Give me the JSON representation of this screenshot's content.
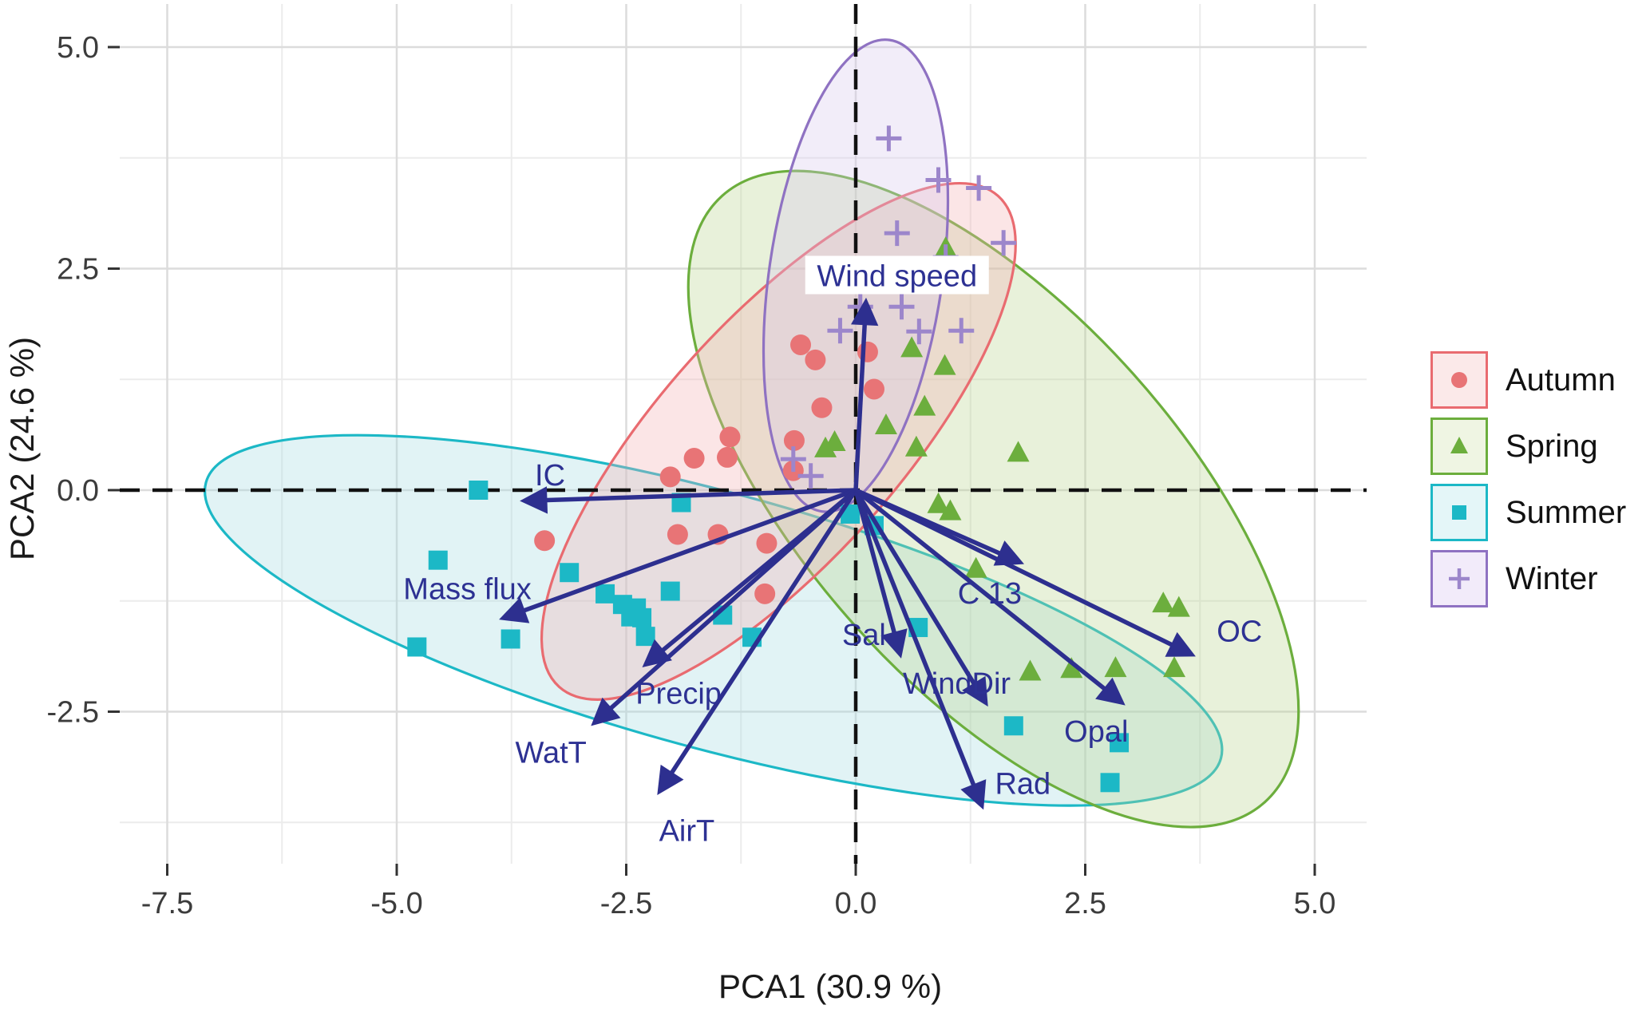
{
  "chart_data": {
    "type": "scatter",
    "subtype": "pca-biplot-with-ellipses-and-loadings",
    "title": "",
    "xlabel": "PCA1 (30.9 %)",
    "ylabel": "PCA2 (24.6 %)",
    "xlim": [
      -8.0,
      5.55
    ],
    "ylim": [
      -4.15,
      5.45
    ],
    "x_ticks": [
      -7.5,
      -5.0,
      -2.5,
      0.0,
      2.5,
      5.0
    ],
    "y_ticks": [
      -2.5,
      0.0,
      2.5,
      5.0
    ],
    "grid": "major and minor, light gray on white",
    "zero_lines": "dashed black at x=0 and y=0",
    "legend_position": "right",
    "arrow_color": "#2d2f8f",
    "label_color": "#2d3193",
    "series": [
      {
        "name": "Autumn",
        "marker": "circle",
        "color": "#e87476",
        "ellipse_color": "#e96b70",
        "fill": "#f3b0b3",
        "points": [
          [
            0.13,
            1.56
          ],
          [
            -0.6,
            1.64
          ],
          [
            -0.44,
            1.47
          ],
          [
            0.2,
            1.14
          ],
          [
            -0.37,
            0.93
          ],
          [
            -0.67,
            0.56
          ],
          [
            -1.37,
            0.6
          ],
          [
            -1.4,
            0.37
          ],
          [
            -1.76,
            0.36
          ],
          [
            -2.02,
            0.15
          ],
          [
            -0.68,
            0.22
          ],
          [
            -1.94,
            -0.5
          ],
          [
            -1.5,
            -0.5
          ],
          [
            -0.97,
            -0.6
          ],
          [
            -3.39,
            -0.57
          ],
          [
            -0.99,
            -1.17
          ]
        ]
      },
      {
        "name": "Spring",
        "marker": "triangle",
        "color": "#6cae3d",
        "ellipse_color": "#6cae3d",
        "fill": "#b9d490",
        "points": [
          [
            0.98,
            2.73
          ],
          [
            0.97,
            1.4
          ],
          [
            0.61,
            1.6
          ],
          [
            0.75,
            0.94
          ],
          [
            0.33,
            0.73
          ],
          [
            0.66,
            0.48
          ],
          [
            -0.23,
            0.54
          ],
          [
            -0.33,
            0.47
          ],
          [
            1.77,
            0.42
          ],
          [
            0.9,
            -0.16
          ],
          [
            1.03,
            -0.24
          ],
          [
            1.31,
            -0.89
          ],
          [
            3.35,
            -1.28
          ],
          [
            3.52,
            -1.33
          ],
          [
            1.9,
            -2.05
          ],
          [
            2.35,
            -2.02
          ],
          [
            2.83,
            -2.01
          ],
          [
            3.47,
            -2.01
          ]
        ]
      },
      {
        "name": "Summer",
        "marker": "square",
        "color": "#1cb8c6",
        "ellipse_color": "#1cb8c6",
        "fill": "#a3dbe1",
        "points": [
          [
            -4.78,
            -1.77
          ],
          [
            -4.55,
            -0.79
          ],
          [
            -4.11,
            0.0
          ],
          [
            -3.76,
            -1.68
          ],
          [
            -3.12,
            -0.93
          ],
          [
            -2.73,
            -1.17
          ],
          [
            -2.54,
            -1.29
          ],
          [
            -2.45,
            -1.43
          ],
          [
            -2.39,
            -1.33
          ],
          [
            -2.33,
            -1.44
          ],
          [
            -2.29,
            -1.65
          ],
          [
            -2.02,
            -1.14
          ],
          [
            -1.9,
            -0.14
          ],
          [
            -1.45,
            -1.41
          ],
          [
            -1.13,
            -1.66
          ],
          [
            -0.06,
            -0.27
          ],
          [
            0.2,
            -0.4
          ],
          [
            0.68,
            -1.55
          ],
          [
            1.72,
            -2.66
          ],
          [
            2.87,
            -2.85
          ],
          [
            2.77,
            -3.3
          ]
        ]
      },
      {
        "name": "Winter",
        "marker": "plus",
        "color": "#9c86cb",
        "ellipse_color": "#8f72c2",
        "fill": "#d9c9ec",
        "points": [
          [
            0.36,
            3.97
          ],
          [
            0.9,
            3.5
          ],
          [
            1.34,
            3.41
          ],
          [
            0.45,
            2.9
          ],
          [
            1.61,
            2.79
          ],
          [
            0.98,
            2.63
          ],
          [
            0.05,
            2.07
          ],
          [
            0.5,
            2.07
          ],
          [
            -0.17,
            1.8
          ],
          [
            0.69,
            1.79
          ],
          [
            1.15,
            1.8
          ],
          [
            -0.68,
            0.35
          ],
          [
            -0.49,
            0.16
          ]
        ]
      }
    ],
    "ellipses": [
      {
        "series": "Summer",
        "cx": -1.55,
        "cy": -1.47,
        "rx": 5.83,
        "ry": 1.42,
        "angle": 15.2
      },
      {
        "series": "Spring",
        "cx": 1.5,
        "cy": -0.1,
        "rx": 4.51,
        "ry": 2.08,
        "angle": 48.2
      },
      {
        "series": "Autumn",
        "cx": -0.84,
        "cy": 0.55,
        "rx": 3.65,
        "ry": 1.33,
        "angle": -48.2
      },
      {
        "series": "Winter",
        "cx": 0.0,
        "cy": 2.42,
        "rx": 2.64,
        "ry": 0.96,
        "angle": -81.8
      }
    ],
    "loadings": [
      {
        "label": "Wind speed",
        "x": 0.11,
        "y": 2.11,
        "lx": 0.45,
        "ly": 2.41,
        "bg": true
      },
      {
        "label": "IC",
        "x": -3.6,
        "y": -0.12,
        "lx": -3.33,
        "ly": 0.16
      },
      {
        "label": "Mass flux",
        "x": -3.83,
        "y": -1.44,
        "lx": -4.23,
        "ly": -1.12
      },
      {
        "label": "Precip",
        "x": -2.28,
        "y": -1.96,
        "lx": -1.93,
        "ly": -2.3
      },
      {
        "label": "WatT",
        "x": -2.84,
        "y": -2.62,
        "lx": -3.32,
        "ly": -2.97
      },
      {
        "label": "AirT",
        "x": -2.13,
        "y": -3.39,
        "lx": -1.84,
        "ly": -3.85
      },
      {
        "label": "Sal",
        "x": 0.48,
        "y": -1.84,
        "lx": 0.09,
        "ly": -1.64
      },
      {
        "label": "WindDir",
        "x": 1.41,
        "y": -2.39,
        "lx": 1.1,
        "ly": -2.19
      },
      {
        "label": "Rad",
        "x": 1.37,
        "y": -3.55,
        "lx": 1.82,
        "ly": -3.32
      },
      {
        "label": "Opal",
        "x": 2.89,
        "y": -2.39,
        "lx": 2.62,
        "ly": -2.73
      },
      {
        "label": "C 13",
        "x": 1.78,
        "y": -0.81,
        "lx": 1.46,
        "ly": -1.17
      },
      {
        "label": "OC",
        "x": 3.65,
        "y": -1.85,
        "lx": 4.18,
        "ly": -1.6
      }
    ]
  },
  "legend": {
    "items": [
      {
        "label": "Autumn",
        "marker": "circle-icon"
      },
      {
        "label": "Spring",
        "marker": "triangle-icon"
      },
      {
        "label": "Summer",
        "marker": "square-icon"
      },
      {
        "label": "Winter",
        "marker": "plus-icon"
      }
    ]
  }
}
